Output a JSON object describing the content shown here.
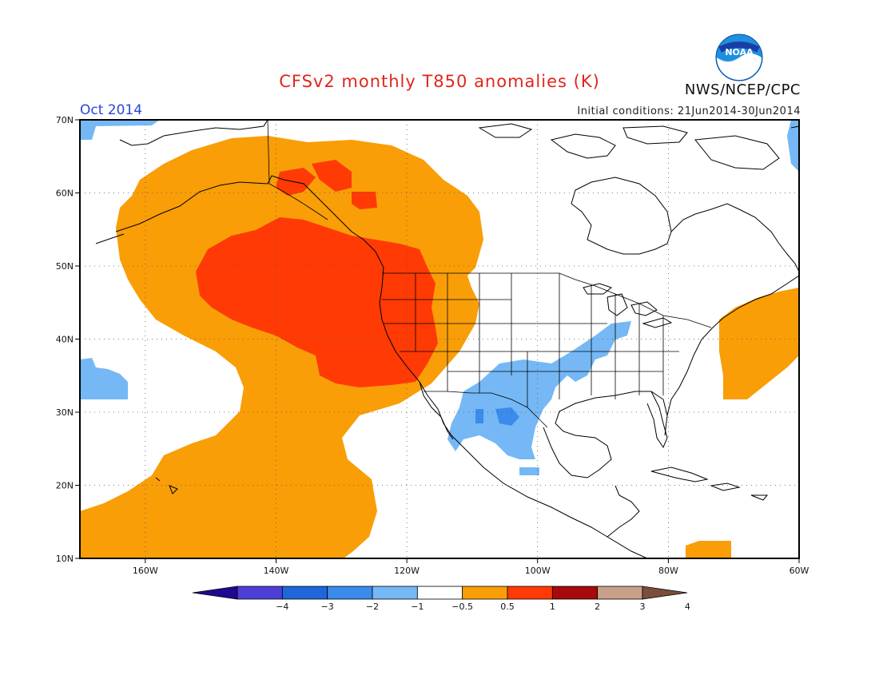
{
  "title": "CFSv2 monthly T850 anomalies (K)",
  "period": "Oct 2014",
  "initial_conditions": "Initial conditions: 21Jun2014-30Jun2014",
  "agency": "NWS/NCEP/CPC",
  "logo_text": "NOAA",
  "lat_labels": [
    "70N",
    "60N",
    "50N",
    "40N",
    "30N",
    "20N",
    "10N"
  ],
  "lon_labels": [
    "160W",
    "140W",
    "120W",
    "100W",
    "80W",
    "60W"
  ],
  "colorbar": {
    "labels": [
      "−4",
      "−3",
      "−2",
      "−1",
      "−0.5",
      "0.5",
      "1",
      "2",
      "3",
      "4"
    ],
    "colors": [
      "#1f0a8f",
      "#4d3fd6",
      "#1f66d9",
      "#3a8bec",
      "#75b8f5",
      "#ffffff",
      "#f99e07",
      "#ff3a05",
      "#a8090a",
      "#c9a08a",
      "#7a4e3c"
    ]
  },
  "map": {
    "extent": {
      "lon_min": -170,
      "lon_max": -60,
      "lat_min": 10,
      "lat_max": 70
    },
    "anomaly_colors": {
      "warm_0_5_1": "#f99e07",
      "warm_1_2": "#ff3a05",
      "cool_m1_m0_5": "#75b8f5"
    }
  }
}
